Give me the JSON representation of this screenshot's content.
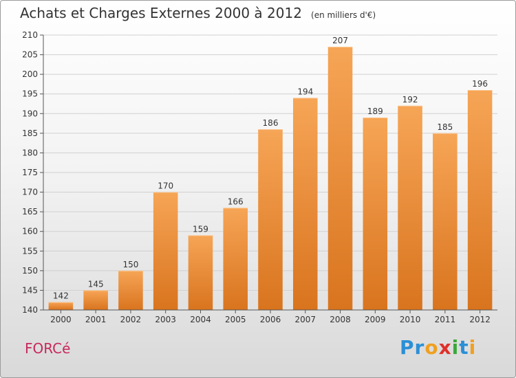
{
  "header": {
    "title": "Achats et Charges Externes 2000 à 2012",
    "unit": "(en milliers d'€)"
  },
  "footer": {
    "location": "FORCé",
    "logo_letters": [
      {
        "ch": "P",
        "color": "#2b8fd6"
      },
      {
        "ch": "r",
        "color": "#2b8fd6"
      },
      {
        "ch": "o",
        "color": "#f0a020"
      },
      {
        "ch": "x",
        "color": "#e0302a"
      },
      {
        "ch": "i",
        "color": "#3aa83a"
      },
      {
        "ch": "t",
        "color": "#2b8fd6"
      },
      {
        "ch": "i",
        "color": "#f0a020"
      }
    ]
  },
  "chart_data": {
    "type": "bar",
    "categories": [
      "2000",
      "2001",
      "2002",
      "2003",
      "2004",
      "2005",
      "2006",
      "2007",
      "2008",
      "2009",
      "2010",
      "2011",
      "2012"
    ],
    "values": [
      142,
      145,
      150,
      170,
      159,
      166,
      186,
      194,
      207,
      189,
      192,
      185,
      196
    ],
    "ylim": [
      140,
      210
    ],
    "yticks": [
      140,
      145,
      150,
      155,
      160,
      165,
      170,
      175,
      180,
      185,
      190,
      195,
      200,
      205,
      210
    ],
    "grid": true,
    "colors": {
      "bar_light": "#f6a556",
      "bar_dark": "#d9741e",
      "grid": "#d0d0d0"
    }
  }
}
